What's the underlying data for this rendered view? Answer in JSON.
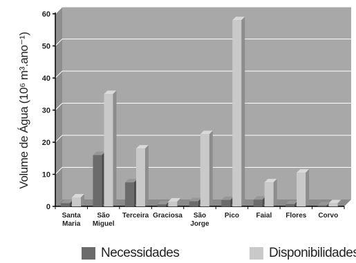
{
  "chart_data": {
    "type": "bar",
    "title": "",
    "ylabel": "Volume de Água (10⁶ m³.ano⁻¹)",
    "xlabel": "",
    "ylim": [
      0,
      60
    ],
    "yticks": [
      "0",
      "10",
      "20",
      "30",
      "40",
      "50",
      "60"
    ],
    "categories": [
      [
        "Santa",
        "Maria"
      ],
      [
        "São",
        "Miguel"
      ],
      [
        "Terceira"
      ],
      [
        "Graciosa"
      ],
      [
        "São",
        "Jorge"
      ],
      [
        "Pico"
      ],
      [
        "Faial"
      ],
      [
        "Flores"
      ],
      [
        "Corvo"
      ]
    ],
    "series": [
      {
        "name": "Necessidades",
        "color": "#6b6b6b",
        "values": [
          1.0,
          16.0,
          7.5,
          0.6,
          1.6,
          2.0,
          2.1,
          0.7,
          0.3
        ]
      },
      {
        "name": "Disponibilidades",
        "color": "#c9c9c9",
        "values": [
          2.8,
          35.0,
          18.0,
          1.5,
          22.5,
          58.0,
          7.5,
          10.5,
          1.0
        ]
      }
    ],
    "grid": true,
    "legend_position": "bottom"
  }
}
